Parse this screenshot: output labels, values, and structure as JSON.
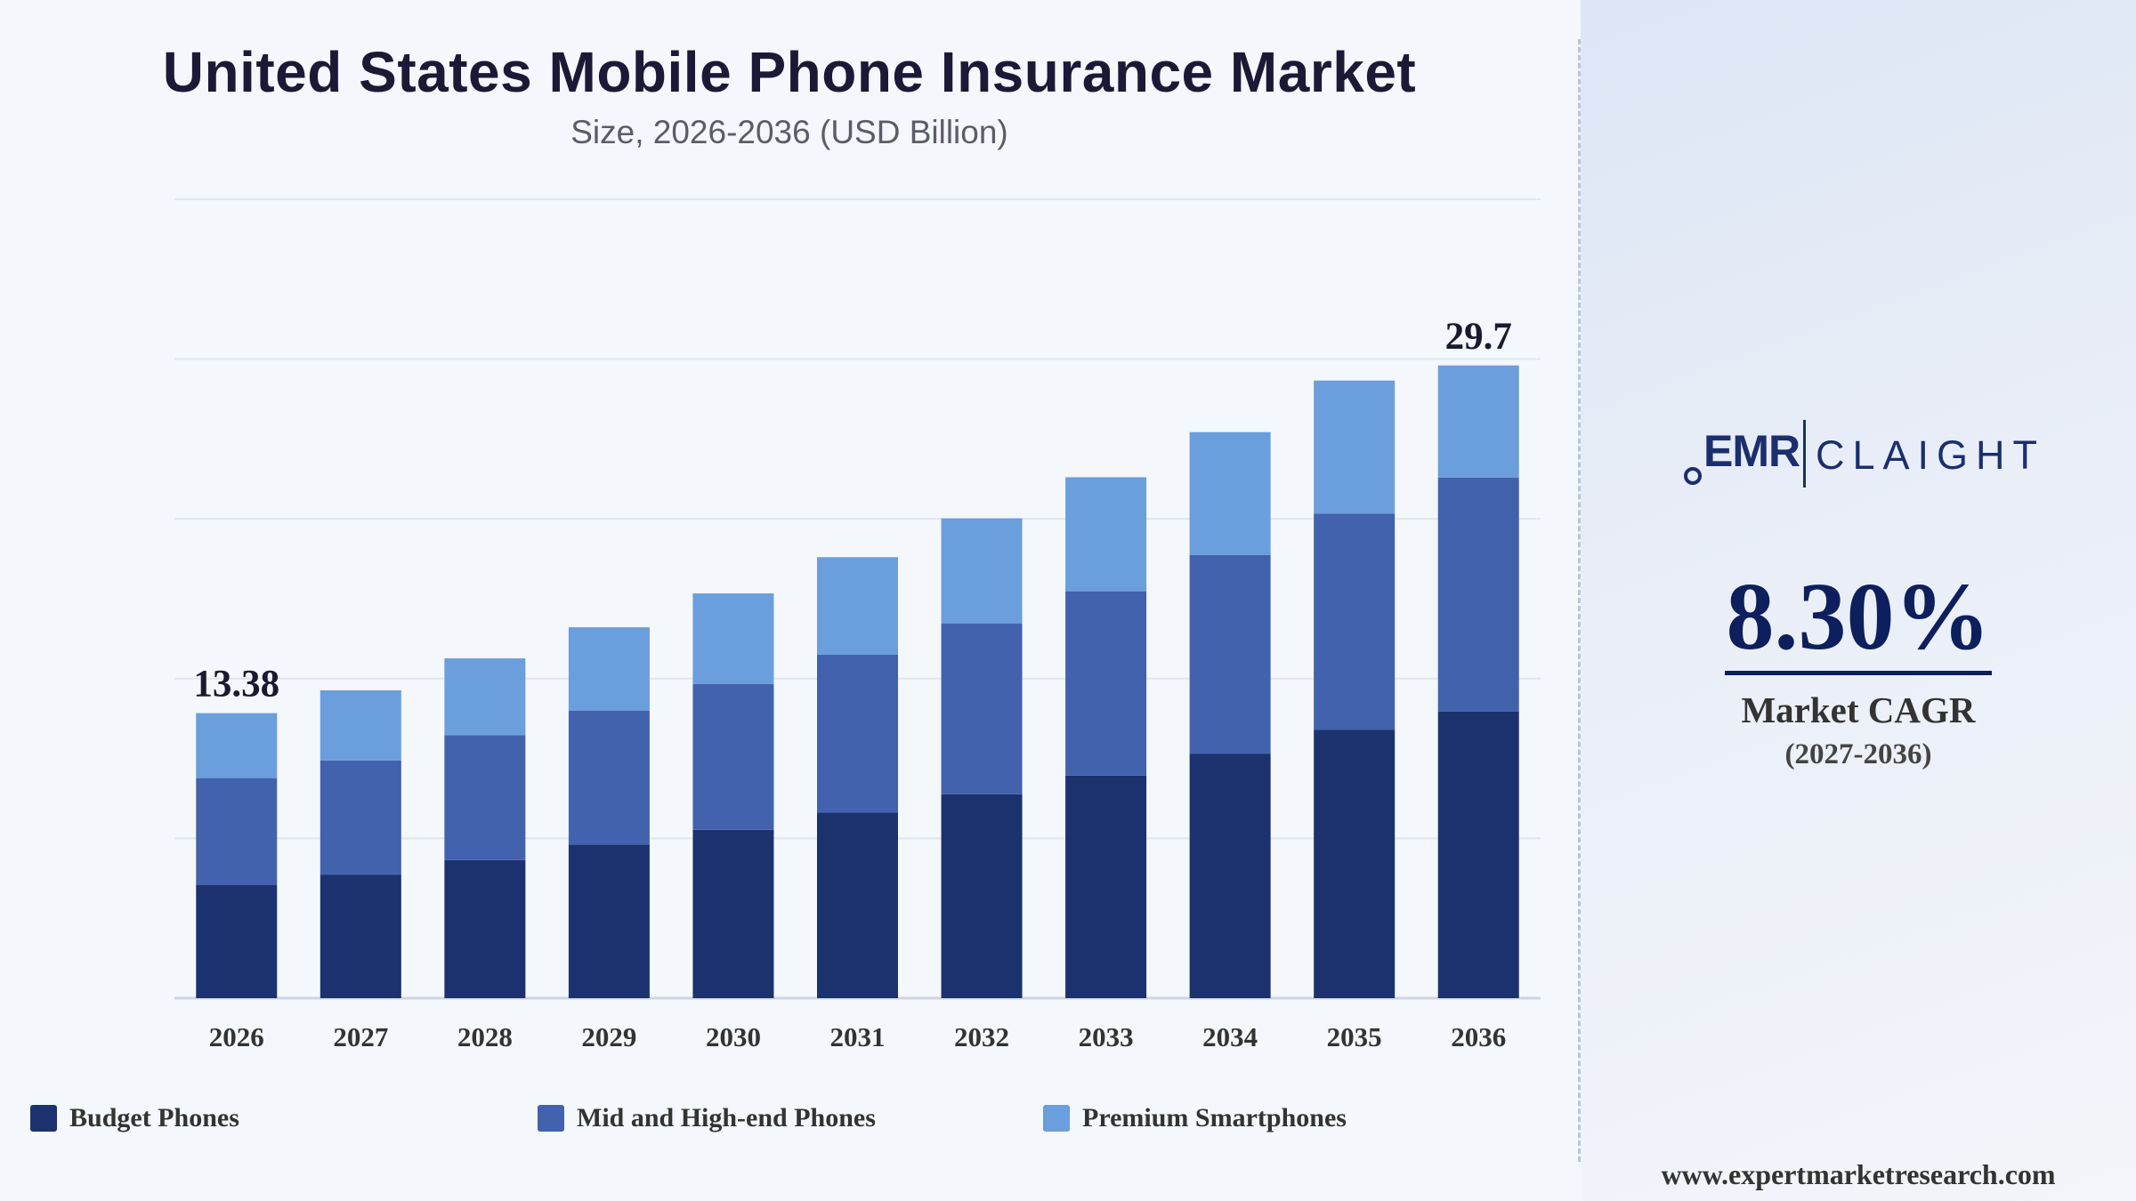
{
  "title": "United States Mobile Phone Insurance Market",
  "subtitle": "Size, 2026-2036 (USD Billion)",
  "chart_data": {
    "type": "bar",
    "stacked": true,
    "categories": [
      "2026",
      "2027",
      "2028",
      "2029",
      "2030",
      "2031",
      "2032",
      "2033",
      "2034",
      "2035",
      "2036"
    ],
    "series": [
      {
        "name": "Budget Phones",
        "color": "#1b326e",
        "values": [
          5.32,
          5.8,
          6.48,
          7.21,
          7.9,
          8.71,
          9.57,
          10.45,
          11.48,
          12.59,
          13.46
        ]
      },
      {
        "name": "Mid and High-end Phones",
        "color": "#4262ae",
        "values": [
          5.01,
          5.36,
          5.87,
          6.29,
          6.84,
          7.41,
          8.01,
          8.65,
          9.32,
          10.16,
          10.98
        ]
      },
      {
        "name": "Premium Smartphones",
        "color": "#6a9edc",
        "values": [
          3.05,
          3.29,
          3.6,
          3.91,
          4.26,
          4.58,
          4.94,
          5.35,
          5.77,
          6.24,
          5.26
        ]
      }
    ],
    "totals": [
      13.38,
      14.45,
      15.95,
      17.41,
      19.0,
      20.7,
      22.52,
      24.45,
      26.57,
      28.99,
      29.7
    ],
    "data_labels": [
      {
        "category": "2026",
        "text": "13.38"
      },
      {
        "category": "2036",
        "text": "29.7"
      }
    ],
    "ylim": [
      0,
      37.5
    ],
    "grid": true,
    "legend_position": "bottom",
    "xlabel": "",
    "ylabel": ""
  },
  "logo": {
    "emr": "EMR",
    "claight": "CLAIGHT"
  },
  "cagr": {
    "value": "8.30%",
    "label": "Market CAGR",
    "period": "(2027-2036)"
  },
  "website": "www.expertmarketresearch.com"
}
